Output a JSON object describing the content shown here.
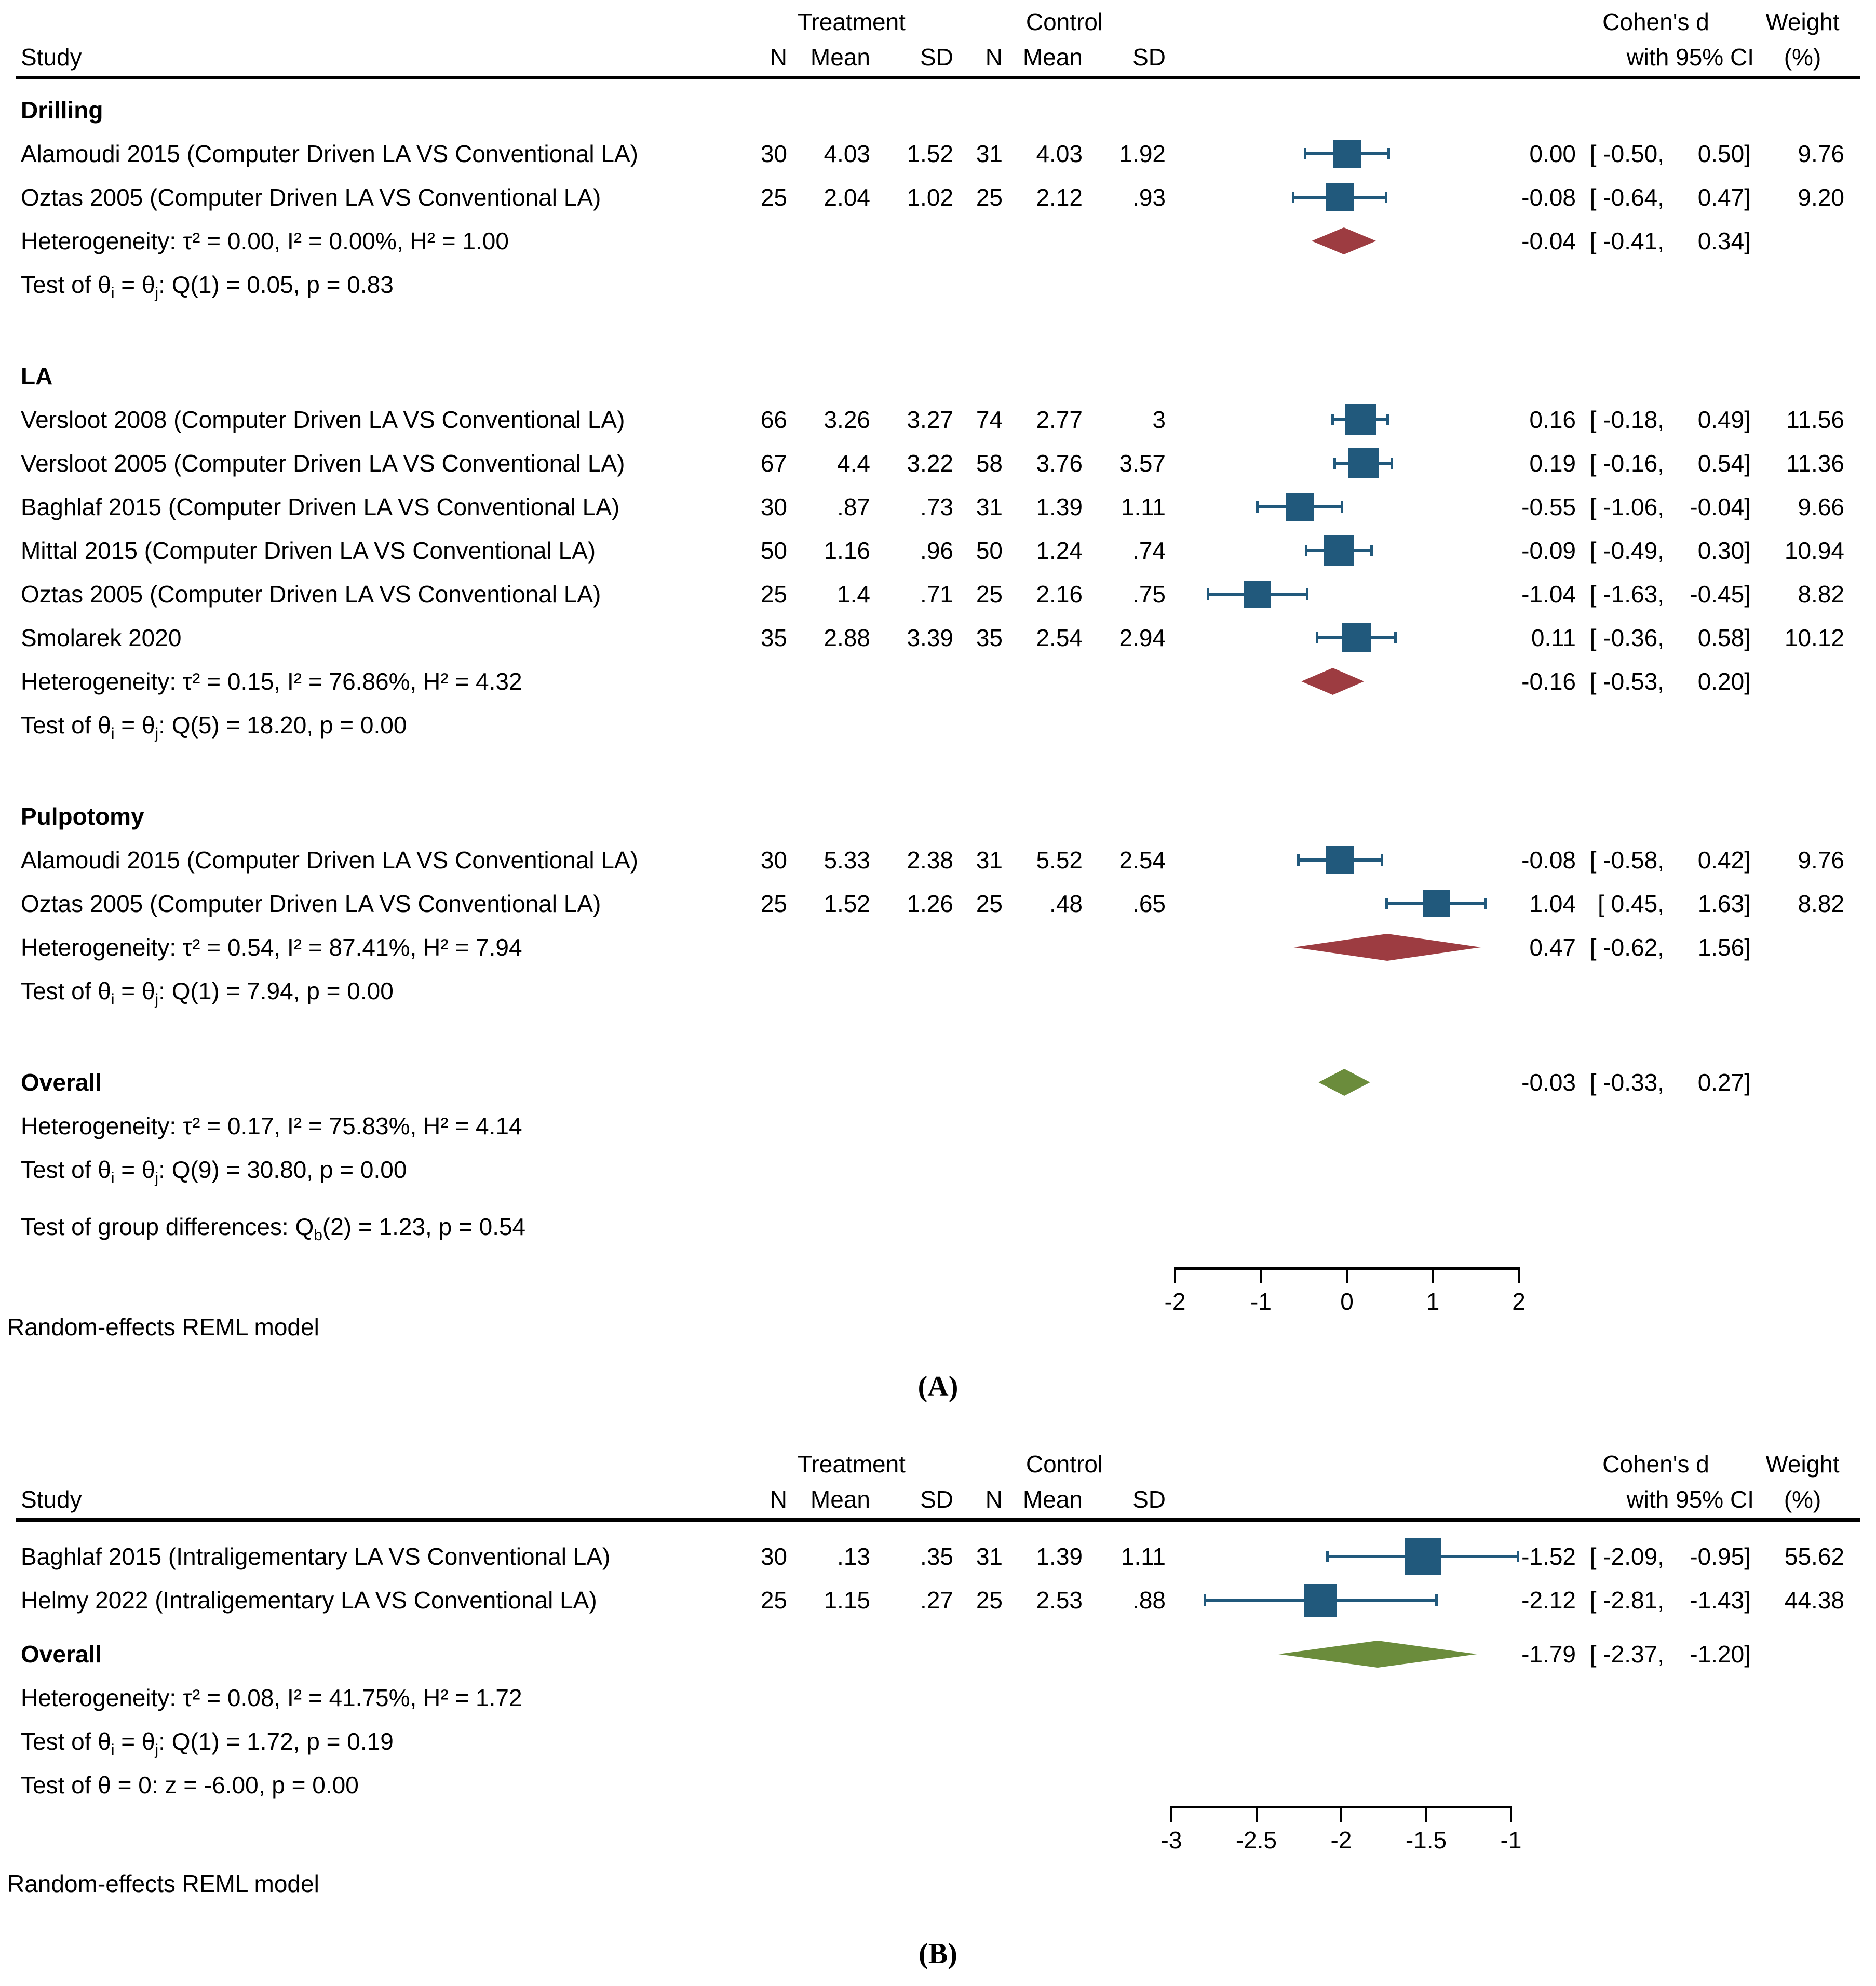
{
  "header": {
    "study": "Study",
    "treatment": "Treatment",
    "control": "Control",
    "n": "N",
    "mean": "Mean",
    "sd": "SD",
    "effect_line1": "Cohen's d",
    "effect_line2": "with 95% CI",
    "weight_line1": "Weight",
    "weight_line2": "(%)"
  },
  "colors": {
    "marker": "#21597C",
    "subgroup_diamond": "#9D3C41",
    "overall_diamond": "#6B8C3C"
  },
  "panel_labels": {
    "a": "(A)",
    "b": "(B)"
  },
  "chart_data": [
    {
      "type": "forest",
      "panel": "A",
      "effect_measure": "Cohen's d with 95% CI",
      "axis": {
        "ticks": [
          "-2",
          "-1",
          "0",
          "1",
          "2"
        ],
        "min": -2,
        "max": 2
      },
      "model_note": "Random-effects REML model",
      "groups": [
        {
          "name": "Drilling",
          "studies": [
            {
              "label": "Alamoudi 2015 (Computer Driven LA VS Conventional LA)",
              "treatment": {
                "n": "30",
                "mean": "4.03",
                "sd": "1.52"
              },
              "control": {
                "n": "31",
                "mean": "4.03",
                "sd": "1.92"
              },
              "ci": {
                "estimate": "0.00",
                "lower": "-0.50",
                "upper": "0.50"
              },
              "weight": "9.76"
            },
            {
              "label": "Oztas 2005 (Computer Driven LA VS Conventional LA)",
              "treatment": {
                "n": "25",
                "mean": "2.04",
                "sd": "1.02"
              },
              "control": {
                "n": "25",
                "mean": "2.12",
                "sd": ".93"
              },
              "ci": {
                "estimate": "-0.08",
                "lower": "-0.64",
                "upper": "0.47"
              },
              "weight": "9.20"
            }
          ],
          "heterogeneity": "Heterogeneity: τ² = 0.00, I² = 0.00%, H² = 1.00",
          "test": "Test of θ<sub>i</sub> = θ<sub>j</sub>: Q(1) = 0.05, p = 0.83",
          "summary": {
            "estimate": "-0.04",
            "lower": "-0.41",
            "upper": "0.34"
          }
        },
        {
          "name": "LA",
          "studies": [
            {
              "label": "Versloot 2008 (Computer Driven LA VS Conventional LA)",
              "treatment": {
                "n": "66",
                "mean": "3.26",
                "sd": "3.27"
              },
              "control": {
                "n": "74",
                "mean": "2.77",
                "sd": "3"
              },
              "ci": {
                "estimate": "0.16",
                "lower": "-0.18",
                "upper": "0.49"
              },
              "weight": "11.56"
            },
            {
              "label": "Versloot 2005 (Computer Driven LA VS Conventional LA)",
              "treatment": {
                "n": "67",
                "mean": "4.4",
                "sd": "3.22"
              },
              "control": {
                "n": "58",
                "mean": "3.76",
                "sd": "3.57"
              },
              "ci": {
                "estimate": "0.19",
                "lower": "-0.16",
                "upper": "0.54"
              },
              "weight": "11.36"
            },
            {
              "label": "Baghlaf 2015 (Computer Driven LA VS Conventional LA)",
              "treatment": {
                "n": "30",
                "mean": ".87",
                "sd": ".73"
              },
              "control": {
                "n": "31",
                "mean": "1.39",
                "sd": "1.11"
              },
              "ci": {
                "estimate": "-0.55",
                "lower": "-1.06",
                "upper": "-0.04"
              },
              "weight": "9.66"
            },
            {
              "label": "Mittal 2015 (Computer Driven LA VS Conventional LA)",
              "treatment": {
                "n": "50",
                "mean": "1.16",
                "sd": ".96"
              },
              "control": {
                "n": "50",
                "mean": "1.24",
                "sd": ".74"
              },
              "ci": {
                "estimate": "-0.09",
                "lower": "-0.49",
                "upper": "0.30"
              },
              "weight": "10.94"
            },
            {
              "label": "Oztas 2005 (Computer Driven LA VS Conventional LA)",
              "treatment": {
                "n": "25",
                "mean": "1.4",
                "sd": ".71"
              },
              "control": {
                "n": "25",
                "mean": "2.16",
                "sd": ".75"
              },
              "ci": {
                "estimate": "-1.04",
                "lower": "-1.63",
                "upper": "-0.45"
              },
              "weight": "8.82"
            },
            {
              "label": "Smolarek 2020",
              "treatment": {
                "n": "35",
                "mean": "2.88",
                "sd": "3.39"
              },
              "control": {
                "n": "35",
                "mean": "2.54",
                "sd": "2.94"
              },
              "ci": {
                "estimate": "0.11",
                "lower": "-0.36",
                "upper": "0.58"
              },
              "weight": "10.12"
            }
          ],
          "heterogeneity": "Heterogeneity: τ² = 0.15, I² = 76.86%, H² = 4.32",
          "test": "Test of θ<sub>i</sub> = θ<sub>j</sub>: Q(5) = 18.20, p = 0.00",
          "summary": {
            "estimate": "-0.16",
            "lower": "-0.53",
            "upper": "0.20"
          }
        },
        {
          "name": "Pulpotomy",
          "studies": [
            {
              "label": "Alamoudi 2015 (Computer Driven LA VS Conventional LA)",
              "treatment": {
                "n": "30",
                "mean": "5.33",
                "sd": "2.38"
              },
              "control": {
                "n": "31",
                "mean": "5.52",
                "sd": "2.54"
              },
              "ci": {
                "estimate": "-0.08",
                "lower": "-0.58",
                "upper": "0.42"
              },
              "weight": "9.76"
            },
            {
              "label": "Oztas 2005 (Computer Driven LA VS Conventional LA)",
              "treatment": {
                "n": "25",
                "mean": "1.52",
                "sd": "1.26"
              },
              "control": {
                "n": "25",
                "mean": ".48",
                "sd": ".65"
              },
              "ci": {
                "estimate": "1.04",
                "lower": "0.45",
                "upper": "1.63"
              },
              "weight": "8.82"
            }
          ],
          "heterogeneity": "Heterogeneity: τ² = 0.54, I² = 87.41%, H² = 7.94",
          "test": "Test of θ<sub>i</sub> = θ<sub>j</sub>: Q(1) = 7.94, p = 0.00",
          "summary": {
            "estimate": "0.47",
            "lower": "-0.62",
            "upper": "1.56"
          }
        }
      ],
      "overall": {
        "label": "Overall",
        "summary": {
          "estimate": "-0.03",
          "lower": "-0.33",
          "upper": "0.27"
        },
        "heterogeneity": "Heterogeneity: τ² = 0.17, I² = 75.83%, H² = 4.14",
        "test": "Test of θ<sub>i</sub> = θ<sub>j</sub>: Q(9) = 30.80, p = 0.00",
        "group_diff": "Test of group differences: Q<sub>b</sub>(2) = 1.23, p = 0.54"
      }
    },
    {
      "type": "forest",
      "panel": "B",
      "effect_measure": "Cohen's d with 95% CI",
      "axis": {
        "ticks": [
          "-3",
          "-2.5",
          "-2",
          "-1.5",
          "-1"
        ],
        "min": -3,
        "max": -1
      },
      "model_note": "Random-effects REML model",
      "groups": [
        {
          "name": null,
          "studies": [
            {
              "label": "Baghlaf 2015 (Intraligementary LA VS Conventional LA)",
              "treatment": {
                "n": "30",
                "mean": ".13",
                "sd": ".35"
              },
              "control": {
                "n": "31",
                "mean": "1.39",
                "sd": "1.11"
              },
              "ci": {
                "estimate": "-1.52",
                "lower": "-2.09",
                "upper": "-0.95"
              },
              "weight": "55.62"
            },
            {
              "label": "Helmy 2022 (Intraligementary LA VS Conventional LA)",
              "treatment": {
                "n": "25",
                "mean": "1.15",
                "sd": ".27"
              },
              "control": {
                "n": "25",
                "mean": "2.53",
                "sd": ".88"
              },
              "ci": {
                "estimate": "-2.12",
                "lower": "-2.81",
                "upper": "-1.43"
              },
              "weight": "44.38"
            }
          ],
          "heterogeneity": null,
          "test": null,
          "summary": null
        }
      ],
      "overall": {
        "label": "Overall",
        "summary": {
          "estimate": "-1.79",
          "lower": "-2.37",
          "upper": "-1.20"
        },
        "heterogeneity": "Heterogeneity: τ² = 0.08, I² = 41.75%, H² = 1.72",
        "test": "Test of θ<sub>i</sub> = θ<sub>j</sub>: Q(1) = 1.72, p = 0.19",
        "test2": "Test of θ = 0: z = -6.00, p = 0.00"
      }
    }
  ]
}
